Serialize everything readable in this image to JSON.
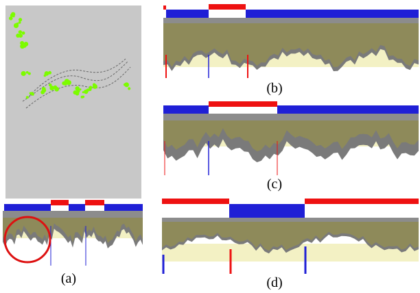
{
  "captions": {
    "a": "(a)",
    "b": "(b)",
    "c": "(c)",
    "d": "(d)"
  },
  "colors": {
    "background_gray": "#c8c8c8",
    "green_points": "#7cfc00",
    "track_blue": "#1f1fd6",
    "track_red": "#ee1111",
    "band_gray": "#8c8c8c",
    "olive_fill": "#8e8a5a",
    "light_yellow": "#f3f1c4",
    "profile_gray": "#7a7a7a",
    "dashed_curve": "#666666",
    "highlight_circle": "#dd1111"
  }
}
